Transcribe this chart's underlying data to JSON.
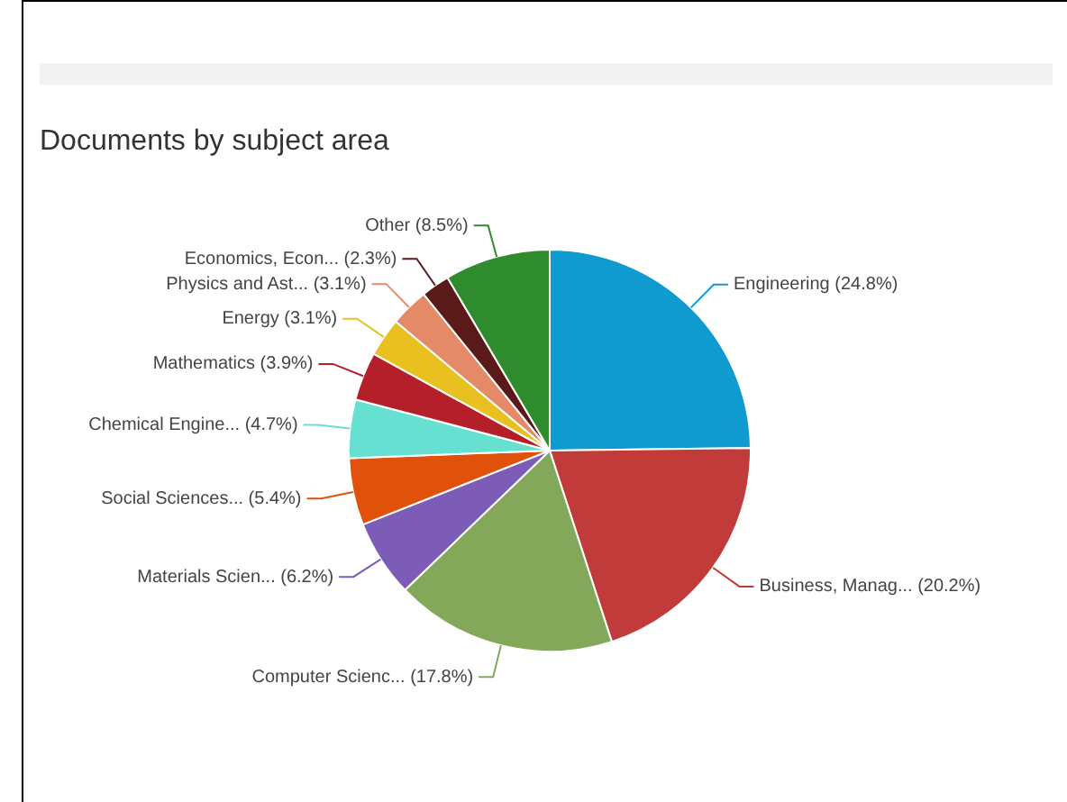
{
  "chart_data": {
    "type": "pie",
    "title": "Documents by subject area",
    "categories": [
      "Engineering",
      "Business, Manag...",
      "Computer Scienc...",
      "Materials Scien...",
      "Social Sciences...",
      "Chemical Engine...",
      "Mathematics",
      "Energy",
      "Physics and Ast...",
      "Economics, Econ...",
      "Other"
    ],
    "values": [
      24.8,
      20.2,
      17.8,
      6.2,
      5.4,
      4.7,
      3.9,
      3.1,
      3.1,
      2.3,
      8.5
    ],
    "value_labels": [
      "(24.8%)",
      "(20.2%)",
      "(17.8%)",
      "(6.2%)",
      "(5.4%)",
      "(4.7%)",
      "(3.9%)",
      "(3.1%)",
      "(3.1%)",
      "(2.3%)",
      "(8.5%)"
    ],
    "colors": [
      "#0f9bd0",
      "#c23b3b",
      "#84a85a",
      "#7d5cb8",
      "#e0520a",
      "#66e0d0",
      "#b51f2a",
      "#e8c020",
      "#e58a68",
      "#5a1a1a",
      "#2e8b2e"
    ],
    "legend": false
  }
}
